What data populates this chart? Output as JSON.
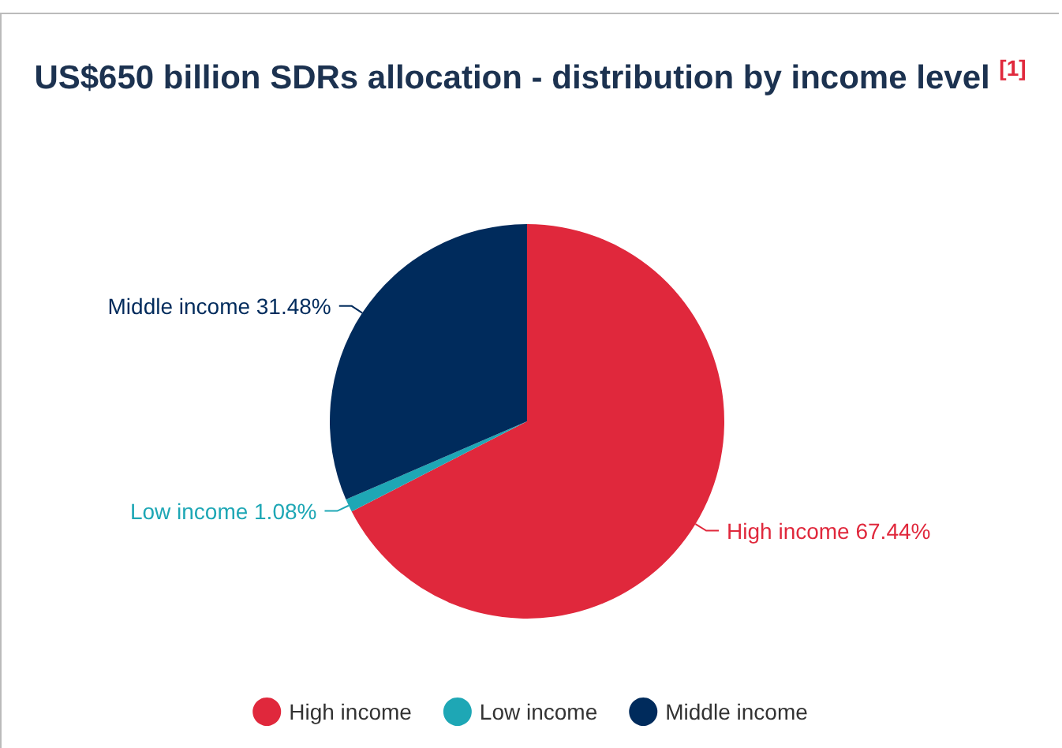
{
  "chart_data": {
    "type": "pie",
    "title": "US$650 billion SDRs allocation - distribution by income level $^{[1]}$",
    "categories": [
      "High income",
      "Low income",
      "Middle income"
    ],
    "values": [
      67.44,
      1.08,
      31.48
    ],
    "colors": [
      "#e0283c",
      "#1ea7b5",
      "#002b5c"
    ],
    "value_labels": [
      "67.44%",
      "1.08%",
      "31.48%"
    ],
    "legend": "bottom"
  }
}
